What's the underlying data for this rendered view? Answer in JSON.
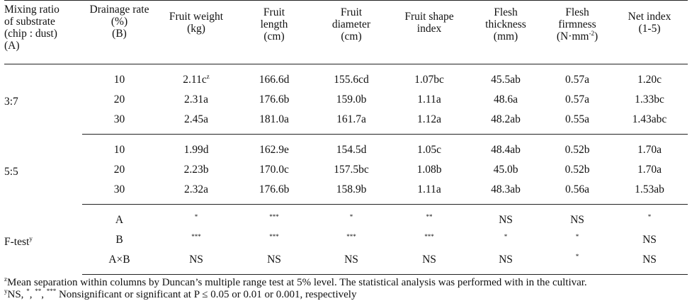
{
  "headers": {
    "mixing": [
      "Mixing ratio",
      "of substrate",
      "(chip : dust)",
      "(A)"
    ],
    "drainage": [
      "Drainage rate",
      "(%)",
      "(B)"
    ],
    "fruit_weight": [
      "Fruit weight",
      "(kg)"
    ],
    "fruit_length": [
      "Fruit",
      "length",
      "(cm)"
    ],
    "fruit_diameter": [
      "Fruit",
      "diameter",
      "(cm)"
    ],
    "fruit_shape": [
      "Fruit shape",
      "index"
    ],
    "flesh_thickness": [
      "Flesh",
      "thickness",
      "(mm)"
    ],
    "flesh_firmness": [
      "Flesh",
      "firmness",
      "(N·mm",
      "-2",
      ")"
    ],
    "net_index": [
      "Net index",
      "(1-5)"
    ]
  },
  "groups": [
    {
      "label": "3:7",
      "rows": [
        {
          "rate": "10",
          "weight": "2.11c",
          "weight_sup": "z",
          "length": "166.6d",
          "diameter": "155.6cd",
          "shape": "1.07bc",
          "thickness": "45.5ab",
          "firmness": "0.57a",
          "net": "1.20c"
        },
        {
          "rate": "20",
          "weight": "2.31a",
          "weight_sup": "",
          "length": "176.6b",
          "diameter": "159.0b",
          "shape": "1.11a",
          "thickness": "48.6a",
          "firmness": "0.57a",
          "net": "1.33bc"
        },
        {
          "rate": "30",
          "weight": "2.45a",
          "weight_sup": "",
          "length": "181.0a",
          "diameter": "161.7a",
          "shape": "1.12a",
          "thickness": "48.2ab",
          "firmness": "0.55a",
          "net": "1.43abc"
        }
      ]
    },
    {
      "label": "5:5",
      "rows": [
        {
          "rate": "10",
          "weight": "1.99d",
          "weight_sup": "",
          "length": "162.9e",
          "diameter": "154.5d",
          "shape": "1.05c",
          "thickness": "48.4ab",
          "firmness": "0.52b",
          "net": "1.70a"
        },
        {
          "rate": "20",
          "weight": "2.23b",
          "weight_sup": "",
          "length": "170.0c",
          "diameter": "157.5bc",
          "shape": "1.08b",
          "thickness": "45.0b",
          "firmness": "0.52b",
          "net": "1.70a"
        },
        {
          "rate": "30",
          "weight": "2.32a",
          "weight_sup": "",
          "length": "176.6b",
          "diameter": "158.9b",
          "shape": "1.11a",
          "thickness": "48.3ab",
          "firmness": "0.56a",
          "net": "1.53ab"
        }
      ]
    }
  ],
  "ftest": {
    "label": "F-test",
    "label_sup": "y",
    "rows": [
      {
        "factor": "A",
        "weight": "*",
        "length": "***",
        "diameter": "*",
        "shape": "**",
        "thickness": "NS",
        "firmness": "NS",
        "net": "*"
      },
      {
        "factor": "B",
        "weight": "***",
        "length": "***",
        "diameter": "***",
        "shape": "***",
        "thickness": "*",
        "firmness": "*",
        "net": "NS"
      },
      {
        "factor": "A×B",
        "weight": "NS",
        "length": "NS",
        "diameter": "NS",
        "shape": "NS",
        "thickness": "NS",
        "firmness": "*",
        "net": "NS"
      }
    ]
  },
  "footnotes": {
    "z_mark": "z",
    "z_text": "Mean separation within columns by Duncan’s multiple range test at 5% level. The statistical analysis was performed with in the cultivar.",
    "y_mark": "y",
    "y_prefix": "NS, ",
    "y_s1": "*",
    "y_comma1": ", ",
    "y_s2": "**",
    "y_comma2": ", ",
    "y_s3": "***",
    "y_text": " Nonsignificant or significant at P ≤ 0.05 or 0.01 or 0.001, respectively"
  }
}
